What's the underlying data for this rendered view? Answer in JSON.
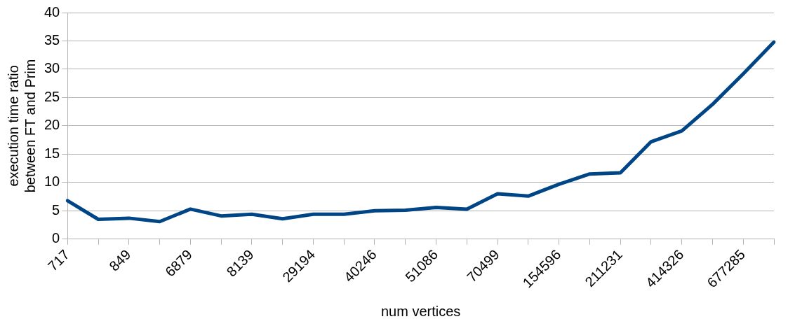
{
  "chart_data": {
    "type": "line",
    "xlabel": "num vertices",
    "ylabel": "execution time ratio\nbetween FT and Prim",
    "categories": [
      "717",
      null,
      "849",
      null,
      "6879",
      null,
      "8139",
      null,
      "29194",
      null,
      "40246",
      null,
      "51086",
      null,
      "70499",
      null,
      "154596",
      null,
      "211231",
      null,
      "414326",
      null,
      "677285",
      null
    ],
    "series": [
      {
        "color": "#004586",
        "values": [
          6.8,
          3.5,
          3.7,
          3.1,
          5.3,
          4.1,
          4.4,
          3.6,
          4.4,
          4.4,
          5.0,
          5.1,
          5.6,
          5.3,
          8.0,
          7.6,
          9.7,
          11.5,
          11.7,
          17.2,
          19.1,
          23.8,
          29.2,
          34.8
        ]
      }
    ],
    "ylim": [
      0,
      40
    ],
    "yticks": [
      0,
      5,
      10,
      15,
      20,
      25,
      30,
      35,
      40
    ],
    "grid": "y",
    "legend": false,
    "marker": "none",
    "line_style": "solid"
  }
}
